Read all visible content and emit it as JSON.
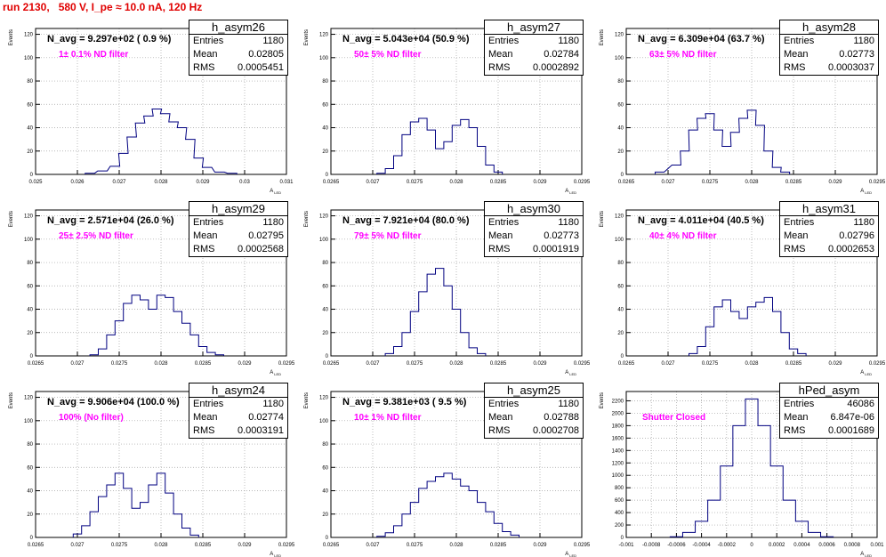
{
  "run_title": "run 2130,   580 V, I_pe ≈ 10.0 nA, 120 Hz",
  "axis_text": {
    "ylabel": "Events",
    "xlabel": "A",
    "xlabel_sub": "LED"
  },
  "colors": {
    "title": "#e00000",
    "annotation": "#ff00ff",
    "line": "#000080",
    "grid": "#a0a0a0"
  },
  "chart_data": [
    {
      "type": "histogram",
      "stat_name": "h_asym26",
      "stats": {
        "entries": "1180",
        "mean": "0.02805",
        "rms": "0.0005451"
      },
      "navg": "N_avg = 9.297e+02 ( 0.9 %)",
      "annotation": "1± 0.1% ND filter",
      "xlim": [
        0.025,
        0.031
      ],
      "ylim": [
        0,
        125
      ],
      "x_ticks": [
        "0.025",
        "0.026",
        "0.027",
        "0.028",
        "0.029",
        "0.03",
        "0.031"
      ],
      "x_tick_values": [
        0.025,
        0.026,
        0.027,
        0.028,
        0.029,
        0.03,
        0.031
      ],
      "y_ticks": [
        0,
        20,
        40,
        60,
        80,
        100,
        120
      ],
      "x": [
        0.0263,
        0.0266,
        0.0269,
        0.0271,
        0.0273,
        0.0275,
        0.0277,
        0.0279,
        0.0281,
        0.0283,
        0.0285,
        0.0287,
        0.0289,
        0.0291,
        0.0294,
        0.0297
      ],
      "y": [
        1,
        3,
        7,
        18,
        32,
        44,
        50,
        56,
        52,
        45,
        40,
        30,
        14,
        6,
        2,
        1
      ]
    },
    {
      "type": "histogram",
      "stat_name": "h_asym27",
      "stats": {
        "entries": "1180",
        "mean": "0.02784",
        "rms": "0.0002892"
      },
      "navg": "N_avg = 5.043e+04 (50.9 %)",
      "annotation": "50± 5% ND filter",
      "xlim": [
        0.0265,
        0.0295
      ],
      "ylim": [
        0,
        125
      ],
      "x_ticks": [
        "0.0265",
        "0.027",
        "0.0275",
        "0.028",
        "0.0285",
        "0.029",
        "0.0295"
      ],
      "x_tick_values": [
        0.0265,
        0.027,
        0.0275,
        0.028,
        0.0285,
        0.029,
        0.0295
      ],
      "y_ticks": [
        0,
        20,
        40,
        60,
        80,
        100,
        120
      ],
      "x": [
        0.0271,
        0.0272,
        0.0273,
        0.0274,
        0.0275,
        0.0276,
        0.0277,
        0.0278,
        0.0279,
        0.028,
        0.0281,
        0.0282,
        0.0283,
        0.0284,
        0.0285
      ],
      "y": [
        1,
        5,
        16,
        34,
        45,
        48,
        38,
        22,
        28,
        42,
        47,
        40,
        24,
        8,
        2
      ]
    },
    {
      "type": "histogram",
      "stat_name": "h_asym28",
      "stats": {
        "entries": "1180",
        "mean": "0.02773",
        "rms": "0.0003037"
      },
      "navg": "N_avg = 6.309e+04 (63.7 %)",
      "annotation": "63± 5% ND filter",
      "xlim": [
        0.0265,
        0.0295
      ],
      "ylim": [
        0,
        125
      ],
      "x_ticks": [
        "0.0265",
        "0.027",
        "0.0275",
        "0.028",
        "0.0285",
        "0.029",
        "0.0295"
      ],
      "x_tick_values": [
        0.0265,
        0.027,
        0.0275,
        0.028,
        0.0285,
        0.029,
        0.0295
      ],
      "y_ticks": [
        0,
        20,
        40,
        60,
        80,
        100,
        120
      ],
      "x": [
        0.0269,
        0.0271,
        0.0272,
        0.0273,
        0.0274,
        0.0275,
        0.0276,
        0.0277,
        0.0278,
        0.0279,
        0.028,
        0.0281,
        0.0282,
        0.0283,
        0.0284
      ],
      "y": [
        2,
        8,
        20,
        38,
        48,
        52,
        38,
        24,
        36,
        48,
        55,
        42,
        20,
        6,
        2
      ]
    },
    {
      "type": "histogram",
      "stat_name": "h_asym29",
      "stats": {
        "entries": "1180",
        "mean": "0.02795",
        "rms": "0.0002568"
      },
      "navg": "N_avg = 2.571e+04 (26.0 %)",
      "annotation": "25± 2.5% ND filter",
      "xlim": [
        0.0265,
        0.0295
      ],
      "ylim": [
        0,
        125
      ],
      "x_ticks": [
        "0.0265",
        "0.027",
        "0.0275",
        "0.028",
        "0.0285",
        "0.029",
        "0.0295"
      ],
      "x_tick_values": [
        0.0265,
        0.027,
        0.0275,
        0.028,
        0.0285,
        0.029,
        0.0295
      ],
      "y_ticks": [
        0,
        20,
        40,
        60,
        80,
        100,
        120
      ],
      "x": [
        0.0272,
        0.0273,
        0.0274,
        0.0275,
        0.0276,
        0.0277,
        0.0278,
        0.0279,
        0.028,
        0.0281,
        0.0282,
        0.0283,
        0.0284,
        0.0285,
        0.0286,
        0.0287
      ],
      "y": [
        1,
        6,
        18,
        30,
        45,
        52,
        48,
        40,
        52,
        50,
        38,
        28,
        18,
        8,
        3,
        1
      ]
    },
    {
      "type": "histogram",
      "stat_name": "h_asym30",
      "stats": {
        "entries": "1180",
        "mean": "0.02773",
        "rms": "0.0001919"
      },
      "navg": "N_avg = 7.921e+04 (80.0 %)",
      "annotation": "79± 5% ND filter",
      "xlim": [
        0.0265,
        0.0295
      ],
      "ylim": [
        0,
        125
      ],
      "x_ticks": [
        "0.0265",
        "0.027",
        "0.0275",
        "0.028",
        "0.0285",
        "0.029",
        "0.0295"
      ],
      "x_tick_values": [
        0.0265,
        0.027,
        0.0275,
        0.028,
        0.0285,
        0.029,
        0.0295
      ],
      "y_ticks": [
        0,
        20,
        40,
        60,
        80,
        100,
        120
      ],
      "x": [
        0.0272,
        0.0273,
        0.0274,
        0.0275,
        0.0276,
        0.0277,
        0.0278,
        0.0279,
        0.028,
        0.0281,
        0.0282,
        0.0283
      ],
      "y": [
        2,
        8,
        20,
        38,
        55,
        70,
        75,
        60,
        40,
        20,
        7,
        2
      ]
    },
    {
      "type": "histogram",
      "stat_name": "h_asym31",
      "stats": {
        "entries": "1180",
        "mean": "0.02796",
        "rms": "0.0002653"
      },
      "navg": "N_avg = 4.011e+04 (40.5 %)",
      "annotation": "40± 4% ND filter",
      "xlim": [
        0.0265,
        0.0295
      ],
      "ylim": [
        0,
        125
      ],
      "x_ticks": [
        "0.0265",
        "0.027",
        "0.0275",
        "0.028",
        "0.0285",
        "0.029",
        "0.0295"
      ],
      "x_tick_values": [
        0.0265,
        0.027,
        0.0275,
        0.028,
        0.0285,
        0.029,
        0.0295
      ],
      "y_ticks": [
        0,
        20,
        40,
        60,
        80,
        100,
        120
      ],
      "x": [
        0.0273,
        0.0274,
        0.0275,
        0.0276,
        0.0277,
        0.0278,
        0.0279,
        0.028,
        0.0281,
        0.0282,
        0.0283,
        0.0284,
        0.0285,
        0.0286
      ],
      "y": [
        2,
        8,
        25,
        42,
        48,
        38,
        32,
        42,
        46,
        50,
        38,
        20,
        6,
        2
      ]
    },
    {
      "type": "histogram",
      "stat_name": "h_asym24",
      "stats": {
        "entries": "1180",
        "mean": "0.02774",
        "rms": "0.0003191"
      },
      "navg": "N_avg = 9.906e+04 (100.0 %)",
      "annotation": "100% (No filter)",
      "xlim": [
        0.0265,
        0.0295
      ],
      "ylim": [
        0,
        125
      ],
      "x_ticks": [
        "0.0265",
        "0.027",
        "0.0275",
        "0.028",
        "0.0285",
        "0.029",
        "0.0295"
      ],
      "x_tick_values": [
        0.0265,
        0.027,
        0.0275,
        0.028,
        0.0285,
        0.029,
        0.0295
      ],
      "y_ticks": [
        0,
        20,
        40,
        60,
        80,
        100,
        120
      ],
      "x": [
        0.027,
        0.0271,
        0.0272,
        0.0273,
        0.0274,
        0.0275,
        0.0276,
        0.0277,
        0.0278,
        0.0279,
        0.028,
        0.0281,
        0.0282,
        0.0283,
        0.0284
      ],
      "y": [
        3,
        10,
        22,
        35,
        45,
        55,
        42,
        25,
        30,
        45,
        55,
        38,
        20,
        8,
        2
      ]
    },
    {
      "type": "histogram",
      "stat_name": "h_asym25",
      "stats": {
        "entries": "1180",
        "mean": "0.02788",
        "rms": "0.0002708"
      },
      "navg": "N_avg = 9.381e+03 ( 9.5 %)",
      "annotation": "10± 1% ND filter",
      "xlim": [
        0.0265,
        0.0295
      ],
      "ylim": [
        0,
        125
      ],
      "x_ticks": [
        "0.0265",
        "0.027",
        "0.0275",
        "0.028",
        "0.0285",
        "0.029",
        "0.0295"
      ],
      "x_tick_values": [
        0.0265,
        0.027,
        0.0275,
        0.028,
        0.0285,
        0.029,
        0.0295
      ],
      "y_ticks": [
        0,
        20,
        40,
        60,
        80,
        100,
        120
      ],
      "x": [
        0.0271,
        0.0272,
        0.0273,
        0.0274,
        0.0275,
        0.0276,
        0.0277,
        0.0278,
        0.0279,
        0.028,
        0.0281,
        0.0282,
        0.0283,
        0.0284,
        0.0285,
        0.0286,
        0.0287
      ],
      "y": [
        1,
        4,
        10,
        20,
        30,
        42,
        48,
        52,
        55,
        50,
        44,
        40,
        30,
        22,
        12,
        5,
        2
      ]
    },
    {
      "type": "histogram",
      "stat_name": "hPed_asym",
      "stats": {
        "entries": "46086",
        "mean": "6.847e-06",
        "rms": "0.0001689"
      },
      "navg": "",
      "annotation": "Shutter Closed",
      "xlim": [
        -0.001,
        0.001
      ],
      "ylim": [
        0,
        2350
      ],
      "x_ticks": [
        "-0.001",
        "-0.0008",
        "-0.0006",
        "-0.0004",
        "-0.0002",
        "0",
        "0.0002",
        "0.0004",
        "0.0006",
        "0.0008",
        "0.001"
      ],
      "x_tick_values": [
        -0.001,
        -0.0008,
        -0.0006,
        -0.0004,
        -0.0002,
        0,
        0.0002,
        0.0004,
        0.0006,
        0.0008,
        0.001
      ],
      "y_ticks": [
        0,
        200,
        400,
        600,
        800,
        1000,
        1200,
        1400,
        1600,
        1800,
        2000,
        2200
      ],
      "x": [
        -0.0006,
        -0.0005,
        -0.0004,
        -0.0003,
        -0.0002,
        -0.0001,
        0.0,
        0.0001,
        0.0002,
        0.0003,
        0.0004,
        0.0005,
        0.0006
      ],
      "y": [
        10,
        80,
        260,
        600,
        1150,
        1800,
        2230,
        1800,
        1150,
        600,
        260,
        80,
        10
      ]
    }
  ]
}
